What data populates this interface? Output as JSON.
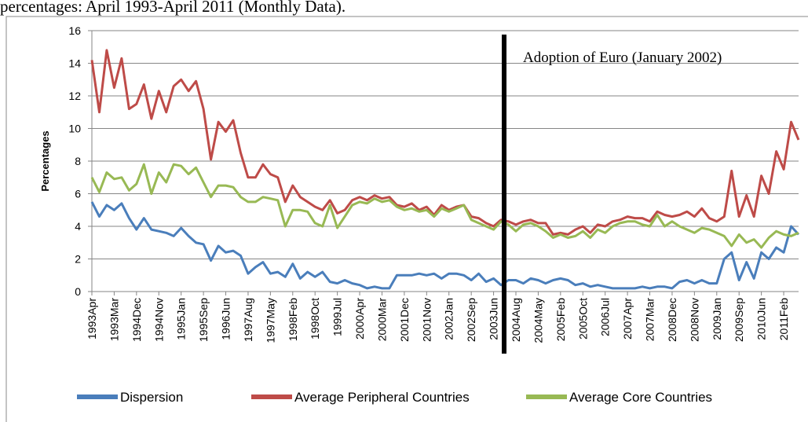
{
  "chart_data": {
    "type": "line",
    "title": "percentages: April 1993-April 2011 (Monthly Data).",
    "y_label": "Percentages",
    "annotation": "Adoption of Euro (January 2002)",
    "ylim": [
      0,
      16
    ],
    "yticks": [
      0,
      2,
      4,
      6,
      8,
      10,
      12,
      14,
      16
    ],
    "grid": true,
    "legend": "bottom",
    "categories": [
      "1993Apr",
      null,
      null,
      "1993Mar",
      null,
      null,
      "1994Dec",
      null,
      null,
      "1994Nov",
      null,
      null,
      "1995Jan",
      null,
      null,
      "1995Sep",
      null,
      null,
      "1996Jun",
      null,
      null,
      "1997Aug",
      null,
      null,
      "1997May",
      null,
      null,
      "1998Feb",
      null,
      null,
      "1998Oct",
      null,
      null,
      "1999Jul",
      null,
      null,
      "2000Apr",
      null,
      null,
      "2000Mar",
      null,
      null,
      "2001Dec",
      null,
      null,
      "2001Nov",
      null,
      null,
      "2002Jan",
      null,
      null,
      "2002Sep",
      null,
      null,
      "2003Jun",
      null,
      null,
      "2004Aug",
      null,
      null,
      "2004May",
      null,
      null,
      "2005Feb",
      null,
      null,
      "2005Oct",
      null,
      null,
      "2006Jul",
      null,
      null,
      "2007Apr",
      null,
      null,
      "2007Mar",
      null,
      null,
      "2008Dec",
      null,
      null,
      "2008Nov",
      null,
      null,
      "2009Jan",
      null,
      null,
      "2009Sep",
      null,
      null,
      "2010Jun",
      null,
      null,
      "2011Feb",
      null,
      null
    ],
    "series": [
      {
        "name": "Dispersion",
        "color": "#4a7ebb",
        "values": [
          5.5,
          4.6,
          5.3,
          5.0,
          5.4,
          4.5,
          3.8,
          4.5,
          3.8,
          3.7,
          3.6,
          3.4,
          3.9,
          3.4,
          3.0,
          2.9,
          1.9,
          2.8,
          2.4,
          2.5,
          2.2,
          1.1,
          1.5,
          1.8,
          1.1,
          1.2,
          0.9,
          1.7,
          0.8,
          1.2,
          0.9,
          1.2,
          0.6,
          0.5,
          0.7,
          0.5,
          0.4,
          0.2,
          0.3,
          0.2,
          0.2,
          1.0,
          1.0,
          1.0,
          1.1,
          1.0,
          1.1,
          0.8,
          1.1,
          1.1,
          1.0,
          0.7,
          1.1,
          0.6,
          0.8,
          0.4,
          0.7,
          0.7,
          0.5,
          0.8,
          0.7,
          0.5,
          0.7,
          0.8,
          0.7,
          0.4,
          0.5,
          0.3,
          0.4,
          0.3,
          0.2,
          0.2,
          0.2,
          0.2,
          0.3,
          0.2,
          0.3,
          0.3,
          0.2,
          0.6,
          0.7,
          0.5,
          0.7,
          0.5,
          0.5,
          2.0,
          2.4,
          0.7,
          1.8,
          0.8,
          2.4,
          2.0,
          2.7,
          2.4,
          4.0,
          3.5
        ]
      },
      {
        "name": "Average Peripheral Countries",
        "color": "#be4b48",
        "values": [
          14.2,
          11.0,
          14.8,
          12.5,
          14.3,
          11.2,
          11.5,
          12.7,
          10.6,
          12.3,
          11.0,
          12.6,
          13.0,
          12.3,
          12.9,
          11.2,
          8.1,
          10.4,
          9.8,
          10.5,
          8.5,
          7.0,
          7.0,
          7.8,
          7.2,
          7.0,
          5.5,
          6.5,
          5.8,
          5.5,
          5.2,
          5.0,
          5.6,
          4.8,
          5.0,
          5.6,
          5.8,
          5.6,
          5.9,
          5.7,
          5.8,
          5.3,
          5.2,
          5.4,
          5.0,
          5.2,
          4.7,
          5.3,
          5.0,
          5.2,
          5.3,
          4.6,
          4.5,
          4.2,
          4.0,
          4.4,
          4.3,
          4.1,
          4.3,
          4.4,
          4.2,
          4.2,
          3.5,
          3.6,
          3.5,
          3.8,
          4.0,
          3.6,
          4.1,
          4.0,
          4.3,
          4.4,
          4.6,
          4.5,
          4.5,
          4.3,
          4.9,
          4.7,
          4.6,
          4.7,
          4.9,
          4.6,
          5.1,
          4.5,
          4.3,
          4.6,
          7.4,
          4.6,
          5.9,
          4.6,
          7.1,
          6.0,
          8.6,
          7.5,
          10.4,
          9.3
        ]
      },
      {
        "name": "Average Core Countries",
        "color": "#98b954",
        "values": [
          7.0,
          6.1,
          7.3,
          6.9,
          7.0,
          6.2,
          6.6,
          7.8,
          6.0,
          7.3,
          6.7,
          7.8,
          7.7,
          7.2,
          7.6,
          6.7,
          5.8,
          6.5,
          6.5,
          6.4,
          5.8,
          5.5,
          5.5,
          5.8,
          5.7,
          5.6,
          4.0,
          5.0,
          5.0,
          4.9,
          4.2,
          4.0,
          5.3,
          3.9,
          4.6,
          5.3,
          5.5,
          5.4,
          5.7,
          5.5,
          5.6,
          5.2,
          5.0,
          5.1,
          4.9,
          5.0,
          4.6,
          5.1,
          4.9,
          5.1,
          5.3,
          4.4,
          4.2,
          4.0,
          3.8,
          4.3,
          4.1,
          3.7,
          4.1,
          4.2,
          4.0,
          3.7,
          3.3,
          3.5,
          3.3,
          3.4,
          3.7,
          3.3,
          3.8,
          3.6,
          4.0,
          4.2,
          4.3,
          4.3,
          4.1,
          4.0,
          4.7,
          4.0,
          4.3,
          4.0,
          3.8,
          3.6,
          3.9,
          3.8,
          3.6,
          3.4,
          2.8,
          3.5,
          3.0,
          3.2,
          2.7,
          3.3,
          3.7,
          3.5,
          3.4,
          3.6
        ]
      }
    ]
  }
}
